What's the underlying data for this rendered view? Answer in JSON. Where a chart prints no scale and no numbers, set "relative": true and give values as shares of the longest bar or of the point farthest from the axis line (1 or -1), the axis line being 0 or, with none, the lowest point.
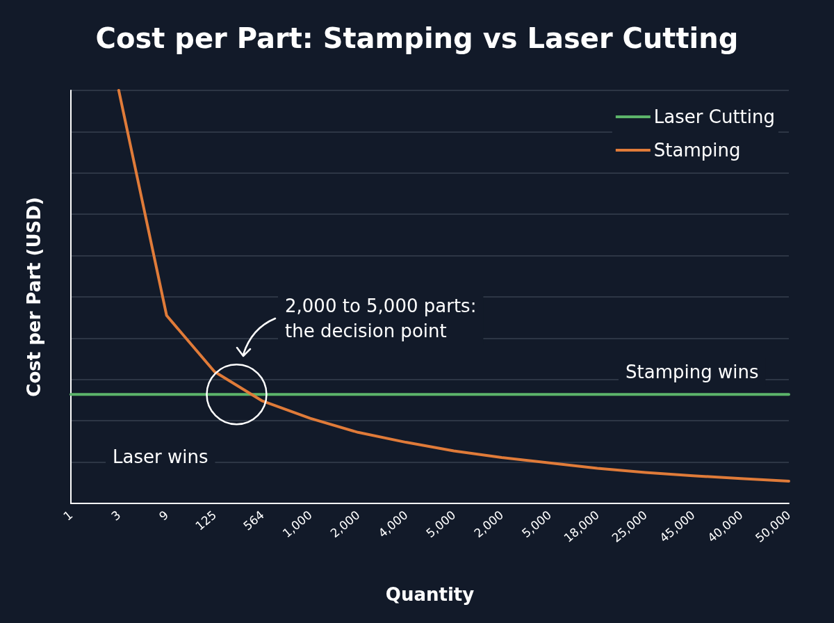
{
  "chart_data": {
    "type": "line",
    "title": "Cost per Part: Stamping vs Laser Cutting",
    "xlabel": "Quantity",
    "ylabel": "Cost per Part (USD)",
    "categories": [
      "1",
      "3",
      "9",
      "125",
      "564",
      "1,000",
      "2,000",
      "4,000",
      "5,000",
      "2,000",
      "5,000",
      "18,000",
      "25,000",
      "45,000",
      "40,000",
      "50,000"
    ],
    "relative": true,
    "series": [
      {
        "name": "Laser Cutting",
        "color": "#5cb46a",
        "values": [
          0.264,
          0.264,
          0.264,
          0.264,
          0.264,
          0.264,
          0.264,
          0.264,
          0.264,
          0.264,
          0.264,
          0.264,
          0.264,
          0.264,
          0.264,
          0.264
        ]
      },
      {
        "name": "Stamping",
        "color": "#e07b39",
        "values": [
          null,
          1,
          0.455,
          0.319,
          0.248,
          0.206,
          0.172,
          0.148,
          0.127,
          0.111,
          0.098,
          0.085,
          0.075,
          0.067,
          0.06,
          0.054
        ]
      }
    ],
    "annotations": [
      "2,000 to 5,000 parts:\nthe decision point",
      "Stamping wins",
      "Laser wins"
    ],
    "grid": "y",
    "legend": "top right",
    "marker": "none",
    "line_style": "solid"
  }
}
